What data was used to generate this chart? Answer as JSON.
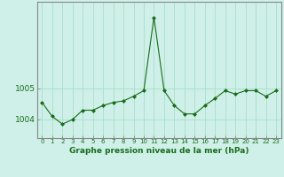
{
  "x": [
    0,
    1,
    2,
    3,
    4,
    5,
    6,
    7,
    8,
    9,
    10,
    11,
    12,
    13,
    14,
    15,
    16,
    17,
    18,
    19,
    20,
    21,
    22,
    23
  ],
  "y": [
    1004.55,
    1004.1,
    1003.85,
    1004.0,
    1004.3,
    1004.3,
    1004.45,
    1004.55,
    1004.6,
    1004.75,
    1004.93,
    1007.3,
    1004.93,
    1004.45,
    1004.18,
    1004.18,
    1004.45,
    1004.68,
    1004.93,
    1004.82,
    1004.93,
    1004.93,
    1004.75,
    1004.93
  ],
  "line_color": "#1a6b1a",
  "marker_color": "#1a6b1a",
  "bg_color": "#cef0e8",
  "grid_color": "#aaddcc",
  "axis_label_color": "#1a6b1a",
  "tick_label_color": "#1a6b1a",
  "xlabel": "Graphe pression niveau de la mer (hPa)",
  "yticks": [
    1004,
    1005
  ],
  "ylim": [
    1003.4,
    1007.8
  ],
  "xlim": [
    -0.5,
    23.5
  ],
  "xtick_labels": [
    "0",
    "1",
    "2",
    "3",
    "4",
    "5",
    "6",
    "7",
    "8",
    "9",
    "10",
    "11",
    "12",
    "13",
    "14",
    "15",
    "16",
    "17",
    "18",
    "19",
    "20",
    "21",
    "22",
    "23"
  ]
}
